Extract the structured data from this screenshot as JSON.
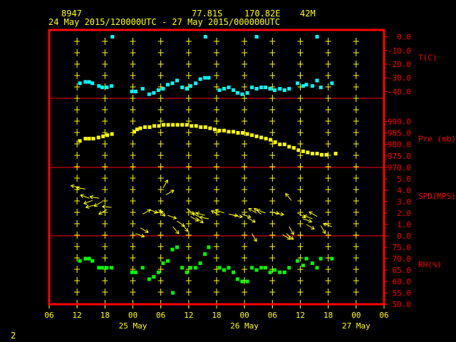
{
  "header": {
    "station_id": "8947",
    "lat": "77.81S",
    "lon": "170.82E",
    "elev": "42M",
    "range": "24 May 2015/120000UTC - 27 May 2015/000000UTC"
  },
  "footer_label": "2",
  "colors": {
    "background": "#000000",
    "frame": "#ff0000",
    "tick": "#ffff00",
    "temperature": "#00ffff",
    "pressure": "#ffff00",
    "wind": "#ffff00",
    "humidity": "#00ff00"
  },
  "chart_data": {
    "type": "scatter",
    "x_unit": "hours since 24 May 2015 06 UTC",
    "x_range": [
      0,
      72
    ],
    "x_ticks": [
      "06",
      "12",
      "18",
      "00",
      "06",
      "12",
      "18",
      "00",
      "06",
      "12",
      "18",
      "00",
      "06"
    ],
    "date_labels": [
      {
        "x": 18,
        "label": "25 May"
      },
      {
        "x": 42,
        "label": "26 May"
      },
      {
        "x": 66,
        "label": "27 May"
      }
    ],
    "panels": [
      {
        "id": "temperature",
        "label": "T(C)",
        "ylim": [
          -45,
          5
        ],
        "yticks": [
          "0.0",
          "-10.0",
          "-20.0",
          "-30.0",
          "-40.0"
        ],
        "ytick_values": [
          0,
          -10,
          -20,
          -30,
          -40
        ],
        "marker": "square",
        "color": "#00ffff",
        "points": [
          [
            6.6,
            -34
          ],
          [
            7.8,
            -33
          ],
          [
            8.6,
            -33
          ],
          [
            9.3,
            -34
          ],
          [
            10.7,
            -36
          ],
          [
            11.4,
            -37
          ],
          [
            12.4,
            -37
          ],
          [
            13.4,
            -36
          ],
          [
            17.8,
            -40
          ],
          [
            18.6,
            -40
          ],
          [
            20.1,
            -38
          ],
          [
            21.5,
            -42
          ],
          [
            22.5,
            -41
          ],
          [
            23.5,
            -39
          ],
          [
            24.5,
            -38
          ],
          [
            25.5,
            -35
          ],
          [
            26.5,
            -34
          ],
          [
            27.5,
            -32
          ],
          [
            28.6,
            -37
          ],
          [
            29.6,
            -38
          ],
          [
            30.4,
            -36
          ],
          [
            31.5,
            -34
          ],
          [
            32.5,
            -31
          ],
          [
            33.5,
            -30
          ],
          [
            34.3,
            -30
          ],
          [
            36.6,
            -39
          ],
          [
            37.6,
            -38
          ],
          [
            38.6,
            -37
          ],
          [
            39.6,
            -39
          ],
          [
            40.5,
            -41
          ],
          [
            41.5,
            -42
          ],
          [
            42.6,
            -41
          ],
          [
            43.6,
            -37
          ],
          [
            44.6,
            -38
          ],
          [
            45.6,
            -37
          ],
          [
            46.5,
            -37
          ],
          [
            47.5,
            -38
          ],
          [
            48.5,
            -39
          ],
          [
            49.6,
            -38
          ],
          [
            50.6,
            -39
          ],
          [
            51.6,
            -38
          ],
          [
            53.4,
            -34
          ],
          [
            54.6,
            -36
          ],
          [
            55.3,
            -35
          ],
          [
            56.6,
            -36
          ],
          [
            57.6,
            -32
          ],
          [
            58.4,
            -37
          ],
          [
            60.8,
            -34
          ],
          [
            13.6,
            0
          ],
          [
            33.6,
            0
          ],
          [
            44.6,
            0
          ],
          [
            57.6,
            0
          ]
        ]
      },
      {
        "id": "pressure",
        "label": "Pre (mb)",
        "ylim": [
          970,
          1000
        ],
        "yticks": [
          "990.0",
          "985.0",
          "980.0",
          "975.0",
          "970.0"
        ],
        "ytick_values": [
          990,
          985,
          980,
          975,
          970
        ],
        "marker": "square",
        "color": "#ffff00",
        "points": [
          [
            6.6,
            981.5
          ],
          [
            7.8,
            982.5
          ],
          [
            8.6,
            982.5
          ],
          [
            9.5,
            982.5
          ],
          [
            10.6,
            983
          ],
          [
            11.6,
            983.5
          ],
          [
            12.5,
            984
          ],
          [
            13.5,
            984.5
          ],
          [
            18.3,
            985.5
          ],
          [
            18.9,
            986.5
          ],
          [
            19.6,
            987
          ],
          [
            20.6,
            987.5
          ],
          [
            21.6,
            987.5
          ],
          [
            22.6,
            988
          ],
          [
            23.6,
            988
          ],
          [
            24.6,
            988.5
          ],
          [
            25.6,
            988.5
          ],
          [
            26.6,
            988.5
          ],
          [
            27.6,
            988.5
          ],
          [
            28.6,
            988.5
          ],
          [
            29.6,
            988.5
          ],
          [
            30.6,
            988
          ],
          [
            31.6,
            988
          ],
          [
            32.6,
            987.5
          ],
          [
            33.6,
            987.5
          ],
          [
            34.6,
            987
          ],
          [
            35.6,
            986.5
          ],
          [
            36.6,
            986
          ],
          [
            37.6,
            986
          ],
          [
            38.6,
            985.5
          ],
          [
            39.6,
            985.5
          ],
          [
            40.6,
            985
          ],
          [
            41.6,
            985
          ],
          [
            42.6,
            984.5
          ],
          [
            43.6,
            984
          ],
          [
            44.6,
            983.5
          ],
          [
            45.6,
            983
          ],
          [
            46.6,
            982.5
          ],
          [
            47.6,
            982
          ],
          [
            48.6,
            981
          ],
          [
            49.6,
            980
          ],
          [
            50.6,
            980
          ],
          [
            51.6,
            979
          ],
          [
            52.6,
            978.5
          ],
          [
            53.6,
            977.5
          ],
          [
            54.6,
            977
          ],
          [
            55.6,
            976.5
          ],
          [
            56.6,
            976
          ],
          [
            57.6,
            976
          ],
          [
            58.6,
            975.5
          ],
          [
            59.6,
            975.5
          ],
          [
            61.6,
            976
          ]
        ]
      },
      {
        "id": "wind",
        "label": "SPD(MPS)",
        "ylim": [
          0,
          6
        ],
        "yticks": [
          "5.0",
          "4.0",
          "3.0",
          "2.0",
          "1.0",
          "0.0"
        ],
        "ytick_values": [
          5,
          4,
          3,
          2,
          1,
          0
        ],
        "marker": "arrow",
        "color": "#ffff00",
        "points": [
          [
            6.6,
            4.2,
            165
          ],
          [
            7.8,
            4.1,
            170
          ],
          [
            8.6,
            3.3,
            160
          ],
          [
            9.3,
            3.1,
            200
          ],
          [
            9.8,
            2.7,
            195
          ],
          [
            10.7,
            3.3,
            170
          ],
          [
            11.4,
            3.0,
            210
          ],
          [
            12.4,
            2.3,
            210
          ],
          [
            13.4,
            2.5,
            175
          ],
          [
            18.6,
            0.2,
            -20
          ],
          [
            19.6,
            0.7,
            -30
          ],
          [
            20.1,
            1.9,
            30
          ],
          [
            21.5,
            2.3,
            -20
          ],
          [
            22.5,
            2.0,
            10
          ],
          [
            23.5,
            2.3,
            -45
          ],
          [
            24.5,
            4.2,
            60
          ],
          [
            25.1,
            3.6,
            30
          ],
          [
            25.5,
            1.8,
            -20
          ],
          [
            26.6,
            0.8,
            -50
          ],
          [
            27.5,
            1.3,
            -35
          ],
          [
            28.6,
            1.0,
            -50
          ],
          [
            29.6,
            2.4,
            -40
          ],
          [
            30.4,
            1.7,
            -30
          ],
          [
            31.5,
            1.6,
            -35
          ],
          [
            32.5,
            1.6,
            150
          ],
          [
            33.5,
            1.8,
            165
          ],
          [
            34.3,
            1.5,
            170
          ],
          [
            36.6,
            1.8,
            150
          ],
          [
            37.6,
            2.0,
            160
          ],
          [
            38.6,
            1.9,
            -10
          ],
          [
            39.6,
            1.8,
            -10
          ],
          [
            41.5,
            1.9,
            -20
          ],
          [
            42.6,
            1.6,
            -30
          ],
          [
            43.6,
            0.2,
            -60
          ],
          [
            44.6,
            2.0,
            150
          ],
          [
            45.6,
            1.9,
            140
          ],
          [
            46.5,
            2.0,
            160
          ],
          [
            47.5,
            2.1,
            -10
          ],
          [
            48.5,
            2.0,
            -10
          ],
          [
            50.2,
            0.1,
            -30
          ],
          [
            51.0,
            0.2,
            -40
          ],
          [
            51.6,
            0.8,
            -60
          ],
          [
            52.1,
            3.1,
            130
          ],
          [
            53.4,
            2.0,
            -30
          ],
          [
            54.6,
            1.5,
            -20
          ],
          [
            55.3,
            1.0,
            -30
          ],
          [
            56.6,
            1.5,
            160
          ],
          [
            57.6,
            1.7,
            150
          ],
          [
            58.4,
            0.9,
            -60
          ],
          [
            60.8,
            0.8,
            160
          ]
        ]
      },
      {
        "id": "humidity",
        "label": "RH(%)",
        "ylim": [
          50,
          80
        ],
        "yticks": [
          "75.0",
          "70.0",
          "65.0",
          "60.0",
          "55.0",
          "50.0"
        ],
        "ytick_values": [
          75,
          70,
          65,
          60,
          55,
          50
        ],
        "marker": "square",
        "color": "#00ff00",
        "points": [
          [
            6.6,
            69
          ],
          [
            7.8,
            70
          ],
          [
            8.6,
            70
          ],
          [
            9.3,
            69
          ],
          [
            10.7,
            66
          ],
          [
            11.4,
            66
          ],
          [
            12.4,
            66
          ],
          [
            13.4,
            66
          ],
          [
            17.8,
            64
          ],
          [
            18.6,
            64
          ],
          [
            20.1,
            66
          ],
          [
            21.5,
            61
          ],
          [
            22.5,
            62
          ],
          [
            23.5,
            64
          ],
          [
            24.5,
            68
          ],
          [
            25.5,
            69
          ],
          [
            26.5,
            74
          ],
          [
            27.5,
            75
          ],
          [
            28.6,
            66
          ],
          [
            29.6,
            64
          ],
          [
            30.4,
            66
          ],
          [
            31.5,
            66
          ],
          [
            32.5,
            68
          ],
          [
            33.5,
            72
          ],
          [
            34.3,
            75
          ],
          [
            36.6,
            66
          ],
          [
            37.6,
            65
          ],
          [
            38.6,
            66
          ],
          [
            39.6,
            64
          ],
          [
            40.5,
            61
          ],
          [
            41.5,
            60
          ],
          [
            42.6,
            60
          ],
          [
            43.6,
            66
          ],
          [
            44.6,
            65
          ],
          [
            45.6,
            66
          ],
          [
            46.5,
            66
          ],
          [
            47.5,
            64
          ],
          [
            48.5,
            65
          ],
          [
            49.6,
            64
          ],
          [
            50.6,
            64
          ],
          [
            51.6,
            66
          ],
          [
            53.4,
            69
          ],
          [
            54.6,
            67
          ],
          [
            55.3,
            70
          ],
          [
            56.6,
            68
          ],
          [
            57.6,
            66
          ],
          [
            58.4,
            70
          ],
          [
            60.8,
            70
          ],
          [
            26.6,
            55
          ]
        ]
      }
    ]
  }
}
